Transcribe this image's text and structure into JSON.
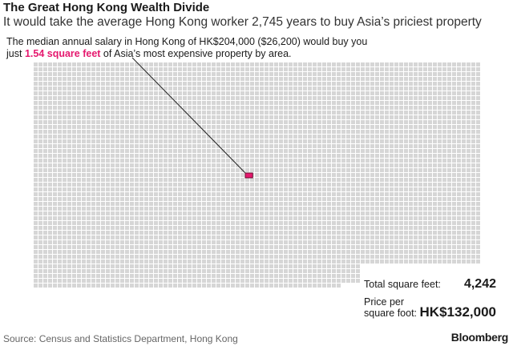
{
  "title": "The Great Hong Kong Wealth Divide",
  "subtitle": "It would take the average Hong Kong worker 2,745 years to buy Asia’s priciest property",
  "annotation": {
    "before": "The median annual salary in Hong Kong of HK$204,000 ($26,200) would buy you just ",
    "highlight": "1.54 square feet",
    "after": " of Asia’s most expensive property by area."
  },
  "stats": {
    "total_label": "Total square feet:",
    "total_value": "4,242",
    "price_label_1": "Price per",
    "price_label_2": "square foot:",
    "price_value": "HK$132,000"
  },
  "source": "Source: Census and Statistics Department, Hong Kong",
  "logo": "Bloomberg",
  "chart_data": {
    "type": "waffle",
    "total_units": 4242,
    "highlighted_units": 1.54,
    "unit": "square feet",
    "colors": {
      "cell": "#d6d6d6",
      "highlight": "#e5186e"
    }
  }
}
